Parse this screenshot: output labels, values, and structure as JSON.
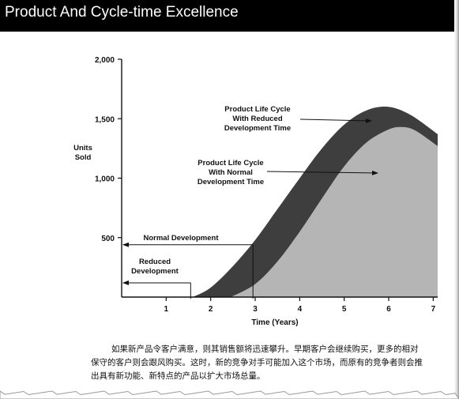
{
  "header": {
    "title": "Product And Cycle-time Excellence"
  },
  "caption": {
    "text": "如果新产品令客户满意，则其销售额将迅速攀升。早期客户会继续购买，更多的相对保守的客户则会跟风购买。这时，新的竞争对手可能加入这个市场，而原有的竞争者则会推出具有新功能、新特点的产品以扩大市场总量。"
  },
  "colors": {
    "reduced_area": "#3e3e3e",
    "normal_area": "#b5b5b5",
    "header_bg": "#000000"
  },
  "chart_data": {
    "type": "area",
    "ylabel": "Units\nSold",
    "xlabel": "Time (Years)",
    "ylim": [
      0,
      2000
    ],
    "xlim": [
      0,
      7.1
    ],
    "y_ticks": [
      "2,000",
      "1,500",
      "1,000",
      "500"
    ],
    "x_ticks": [
      "1",
      "2",
      "3",
      "4",
      "5",
      "6",
      "7"
    ],
    "series": [
      {
        "name": "Product Life Cycle\nWith Reduced\nDevelopment Time",
        "x": [
          1.6,
          2.0,
          2.5,
          3.0,
          3.5,
          4.0,
          4.5,
          5.0,
          5.5,
          6.0,
          6.5,
          7.1
        ],
        "values": [
          0,
          80,
          260,
          480,
          740,
          1000,
          1250,
          1450,
          1570,
          1600,
          1530,
          1370
        ]
      },
      {
        "name": "Product Life Cycle\nWith Normal\nDevelopment Time",
        "x": [
          2.45,
          3.0,
          3.5,
          4.0,
          4.5,
          5.0,
          5.5,
          6.0,
          6.3,
          6.6,
          7.1
        ],
        "values": [
          0,
          110,
          300,
          550,
          830,
          1100,
          1300,
          1410,
          1430,
          1400,
          1270
        ]
      }
    ],
    "annotations": [
      {
        "text": "Normal Development",
        "x_from": 0,
        "x_to": 2.95,
        "y": 440
      },
      {
        "text": "Reduced\nDevelopment",
        "x_from": 0,
        "x_to": 1.55,
        "y": 120
      }
    ]
  }
}
